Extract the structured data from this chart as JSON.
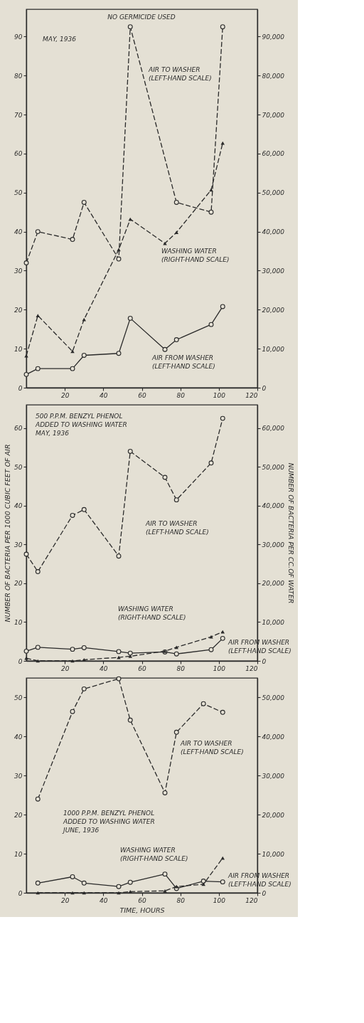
{
  "chart_data": [
    {
      "type": "line",
      "xlim": [
        0,
        120
      ],
      "xticks": [
        20,
        40,
        60,
        80,
        100,
        120
      ],
      "ylim": [
        0,
        97
      ],
      "yticks": [
        0,
        10,
        20,
        30,
        40,
        50,
        60,
        70,
        80,
        90
      ],
      "y2lim": [
        0,
        97000
      ],
      "y2ticks": [
        0,
        {
          "value": 10000,
          "label": "10,000"
        },
        {
          "value": 20000,
          "label": "20,000"
        },
        {
          "value": 30000,
          "label": "30,000"
        },
        {
          "value": 40000,
          "label": "40,000"
        },
        {
          "value": 50000,
          "label": "50,000"
        },
        {
          "value": 60000,
          "label": "60,000"
        },
        {
          "value": 70000,
          "label": "70,000"
        },
        {
          "value": 80000,
          "label": "80,000"
        },
        {
          "value": 90000,
          "label": "90,000"
        }
      ],
      "grid": false,
      "series": [
        {
          "x": [
            0,
            6,
            24,
            30,
            48,
            54,
            78,
            96,
            102
          ],
          "values": [
            32,
            40,
            38,
            47.5,
            33,
            92.5,
            47.5,
            45,
            92.5
          ],
          "color": "#2a2a2a",
          "marker": "circle",
          "line_style": "dashed"
        },
        {
          "x": [
            0,
            6,
            24,
            30,
            48,
            54,
            72,
            78,
            96,
            102
          ],
          "values": [
            3.4,
            4.9,
            4.9,
            8.3,
            8.8,
            17.8,
            9.8,
            12.3,
            16.2,
            20.8
          ],
          "color": "#2a2a2a",
          "marker": "circle",
          "line_style": "solid"
        },
        {
          "x": [
            0,
            6,
            24,
            30,
            48,
            54,
            72,
            78,
            96,
            102
          ],
          "values": [
            8200,
            18500,
            9300,
            17500,
            35400,
            43200,
            37000,
            39800,
            50700,
            62700
          ],
          "color": "#2a2a2a",
          "marker": "triangle",
          "line_style": "dashed",
          "axis": "y2"
        }
      ],
      "annotations": [
        "NO GERMICIDE USED",
        "MAY, 1936",
        "AIR TO WASHER\n(LEFT-HAND SCALE)",
        "WASHING WATER\n(RIGHT-HAND SCALE)",
        "AIR FROM WASHER\n(LEFT-HAND SCALE)"
      ]
    },
    {
      "type": "line",
      "xlim": [
        0,
        120
      ],
      "xticks": [
        20,
        40,
        60,
        80,
        100,
        120
      ],
      "ylim": [
        0,
        66
      ],
      "yticks": [
        0,
        10,
        20,
        30,
        40,
        50,
        60
      ],
      "y2lim": [
        0,
        66000
      ],
      "y2ticks": [
        0,
        {
          "value": 10000,
          "label": "10,000"
        },
        {
          "value": 20000,
          "label": "20,000"
        },
        {
          "value": 30000,
          "label": "30,000"
        },
        {
          "value": 40000,
          "label": "40,000"
        },
        {
          "value": 50000,
          "label": "50,000"
        },
        {
          "value": 60000,
          "label": "60,000"
        }
      ],
      "ylabel": "NUMBER OF BACTERIA PER 1000 CUBIC FEET OF AIR",
      "y2label": "NUMBER OF BACTERIA PER CC.OF WATER",
      "grid": false,
      "series": [
        {
          "x": [
            0,
            6,
            24,
            30,
            48,
            54,
            72,
            78,
            96,
            102
          ],
          "values": [
            27.5,
            23,
            37.5,
            39,
            27,
            54,
            47.3,
            41.5,
            51,
            62.5
          ],
          "color": "#2a2a2a",
          "marker": "circle",
          "line_style": "dashed"
        },
        {
          "x": [
            0,
            6,
            24,
            30,
            48,
            54,
            72,
            78,
            96,
            102
          ],
          "values": [
            2.5,
            3.5,
            3,
            3.4,
            2.4,
            2,
            2.3,
            1.8,
            2.9,
            5.8
          ],
          "color": "#2a2a2a",
          "marker": "circle",
          "line_style": "solid"
        },
        {
          "x": [
            0,
            6,
            24,
            30,
            48,
            54,
            72,
            78,
            96,
            102
          ],
          "values": [
            700,
            0,
            0,
            300,
            900,
            1200,
            2500,
            3500,
            6200,
            7500
          ],
          "color": "#2a2a2a",
          "marker": "triangle",
          "line_style": "dashed",
          "axis": "y2"
        }
      ],
      "annotations": [
        "500 P.P.M. BENZYL PHENOL\nADDED TO WASHING WATER\nMAY, 1936",
        "AIR TO WASHER\n(LEFT-HAND SCALE)",
        "WASHING WATER\n(RIGHT-HAND SCALE)",
        "AIR FROM WASHER\n(LEFT-HAND SCALE)"
      ]
    },
    {
      "type": "line",
      "xlim": [
        0,
        120
      ],
      "xticks": [
        20,
        40,
        60,
        80,
        100,
        120
      ],
      "ylim": [
        0,
        55
      ],
      "yticks": [
        0,
        10,
        20,
        30,
        40,
        50
      ],
      "y2lim": [
        0,
        55000
      ],
      "y2ticks": [
        0,
        {
          "value": 10000,
          "label": "10,000"
        },
        {
          "value": 20000,
          "label": "20,000"
        },
        {
          "value": 30000,
          "label": "30,000"
        },
        {
          "value": 40000,
          "label": "40,000"
        },
        {
          "value": 50000,
          "label": "50,000"
        }
      ],
      "xlabel": "TIME, HOURS",
      "grid": false,
      "series": [
        {
          "x": [
            6,
            24,
            30,
            48,
            54,
            72,
            78,
            92,
            102
          ],
          "values": [
            24,
            46.4,
            52.2,
            54.8,
            44.2,
            25.6,
            41.1,
            48.4,
            46.2
          ],
          "color": "#2a2a2a",
          "marker": "circle",
          "line_style": "dashed"
        },
        {
          "x": [
            6,
            24,
            30,
            48,
            54,
            72,
            78,
            92,
            102
          ],
          "values": [
            2.5,
            4.1,
            2.5,
            1.6,
            2.7,
            4.8,
            1.1,
            3,
            2.8
          ],
          "color": "#2a2a2a",
          "marker": "circle",
          "line_style": "solid"
        },
        {
          "x": [
            6,
            24,
            30,
            48,
            54,
            72,
            78,
            92,
            102
          ],
          "values": [
            0,
            0,
            0,
            0,
            300,
            500,
            1600,
            2200,
            8900
          ],
          "color": "#2a2a2a",
          "marker": "triangle",
          "line_style": "dashed",
          "axis": "y2"
        }
      ],
      "annotations": [
        "1000 P.P.M. BENZYL PHENOL\nADDED TO WASHING WATER\nJUNE, 1936",
        "AIR TO WASHER\n(LEFT-HAND SCALE)",
        "WASHING WATER\n(RIGHT-HAND SCALE)",
        "AIR FROM WASHER\n(LEFT-HAND SCALE)"
      ]
    }
  ]
}
